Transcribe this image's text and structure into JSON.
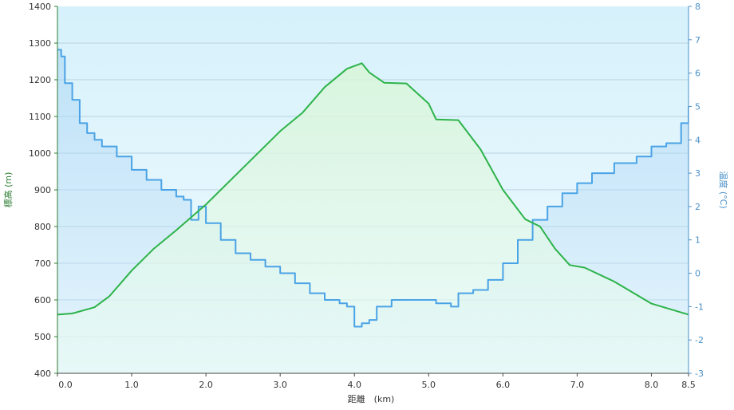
{
  "colors": {
    "elevation": "#2db34a",
    "temperature": "#4aa3e6",
    "left_axis_text": "#2e7d32",
    "right_axis_text": "#4a90c8",
    "grid": "#b7d3e0",
    "plot_top": "#d6f1fb",
    "plot_bottom": "#f2fbff"
  },
  "chart_data": {
    "type": "area",
    "xlabel": "距離　(km)",
    "ylabel": "標高 (m)",
    "y2label": "温度 (°C)",
    "xlim": [
      0,
      8.5
    ],
    "ylim": [
      400,
      1400
    ],
    "y2lim": [
      -3,
      8
    ],
    "x_ticks": [
      "0.0",
      "1.0",
      "2.0",
      "3.0",
      "4.0",
      "5.0",
      "6.0",
      "7.0",
      "8.0",
      "8.5"
    ],
    "x_tick_values": [
      0,
      1,
      2,
      3,
      4,
      5,
      6,
      7,
      8,
      8.5
    ],
    "y_ticks": [
      "400",
      "500",
      "600",
      "700",
      "800",
      "900",
      "1000",
      "1100",
      "1200",
      "1300",
      "1400"
    ],
    "y2_ticks": [
      "-3",
      "-2",
      "-1",
      "0",
      "1",
      "2",
      "3",
      "4",
      "5",
      "6",
      "7",
      "8"
    ],
    "grid": true,
    "series": [
      {
        "axis": "left",
        "x": [
          0,
          0.2,
          0.5,
          0.7,
          1.0,
          1.3,
          1.6,
          2.0,
          2.5,
          3.0,
          3.3,
          3.6,
          3.9,
          4.1,
          4.2,
          4.4,
          4.7,
          5.0,
          5.1,
          5.4,
          5.7,
          6.0,
          6.3,
          6.5,
          6.7,
          6.9,
          7.1,
          7.5,
          8.0,
          8.5
        ],
        "y": [
          560,
          563,
          580,
          610,
          680,
          740,
          790,
          860,
          960,
          1060,
          1110,
          1180,
          1230,
          1245,
          1220,
          1192,
          1190,
          1135,
          1092,
          1090,
          1010,
          900,
          820,
          800,
          740,
          695,
          688,
          650,
          590,
          560
        ]
      },
      {
        "axis": "right",
        "x": [
          0,
          0.05,
          0.1,
          0.2,
          0.3,
          0.4,
          0.5,
          0.6,
          0.8,
          1.0,
          1.2,
          1.4,
          1.6,
          1.7,
          1.8,
          1.9,
          2.0,
          2.2,
          2.4,
          2.6,
          2.8,
          3.0,
          3.2,
          3.4,
          3.6,
          3.8,
          3.9,
          4.0,
          4.1,
          4.2,
          4.3,
          4.5,
          4.7,
          4.9,
          5.1,
          5.3,
          5.4,
          5.6,
          5.8,
          6.0,
          6.2,
          6.4,
          6.6,
          6.8,
          7.0,
          7.2,
          7.5,
          7.8,
          8.0,
          8.2,
          8.4,
          8.5
        ],
        "y": [
          6.7,
          6.5,
          5.7,
          5.2,
          4.5,
          4.2,
          4.0,
          3.8,
          3.5,
          3.1,
          2.8,
          2.5,
          2.3,
          2.2,
          1.6,
          2.0,
          1.5,
          1.0,
          0.6,
          0.4,
          0.2,
          0.0,
          -0.3,
          -0.6,
          -0.8,
          -0.9,
          -1.0,
          -1.6,
          -1.5,
          -1.4,
          -1.0,
          -0.8,
          -0.8,
          -0.8,
          -0.9,
          -1.0,
          -0.6,
          -0.5,
          -0.2,
          0.3,
          1.0,
          1.6,
          2.0,
          2.4,
          2.7,
          3.0,
          3.3,
          3.5,
          3.8,
          3.9,
          4.5,
          5.0
        ]
      }
    ]
  }
}
